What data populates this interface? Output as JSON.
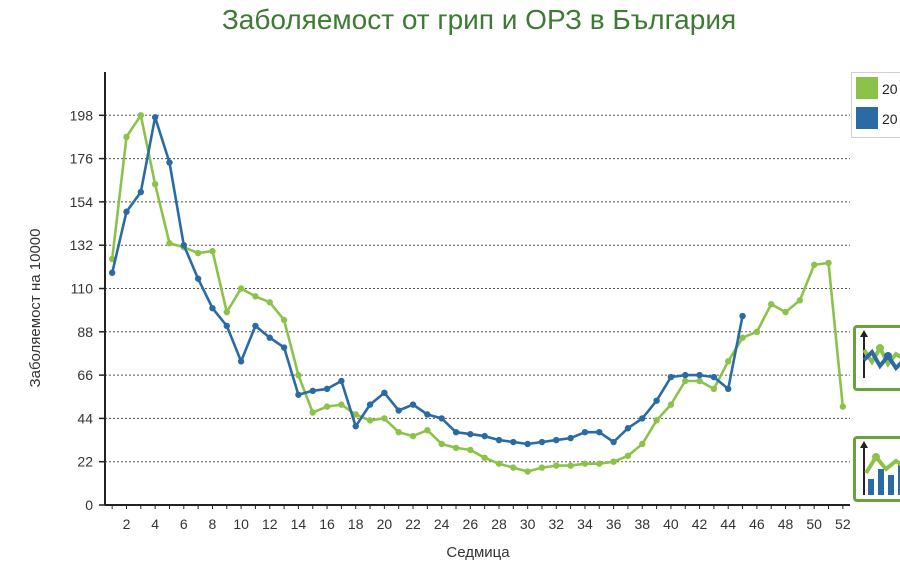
{
  "chart_data": {
    "type": "line",
    "title": "Заболяемост от грип и ОРЗ в България",
    "xlabel": "Седмица",
    "ylabel": "Заболяемост на 10000",
    "ylim": [
      0,
      220
    ],
    "xlim": [
      0.5,
      52.5
    ],
    "yticks": [
      0,
      22,
      44,
      66,
      88,
      110,
      132,
      154,
      176,
      198
    ],
    "xticks": [
      2,
      4,
      6,
      8,
      10,
      12,
      14,
      16,
      18,
      20,
      22,
      24,
      26,
      28,
      30,
      32,
      34,
      36,
      38,
      40,
      42,
      44,
      46,
      48,
      50,
      52
    ],
    "grid": true,
    "legend_position": "right",
    "series": [
      {
        "name": "20",
        "color": "#8bc34a",
        "x": [
          1,
          2,
          3,
          4,
          5,
          6,
          7,
          8,
          9,
          10,
          11,
          12,
          13,
          14,
          15,
          16,
          17,
          18,
          19,
          20,
          21,
          22,
          23,
          24,
          25,
          26,
          27,
          28,
          29,
          30,
          31,
          32,
          33,
          34,
          35,
          36,
          37,
          38,
          39,
          40,
          41,
          42,
          43,
          44,
          45,
          46,
          47,
          48,
          49,
          50,
          51,
          52
        ],
        "values": [
          125,
          187,
          198,
          163,
          133,
          131,
          128,
          129,
          98,
          110,
          106,
          103,
          94,
          66,
          47,
          50,
          51,
          46,
          43,
          44,
          37,
          35,
          38,
          31,
          29,
          28,
          24,
          21,
          19,
          17,
          19,
          20,
          20,
          21,
          21,
          22,
          25,
          31,
          43,
          51,
          63,
          63,
          59,
          73,
          85,
          88,
          102,
          98,
          104,
          122,
          123,
          50
        ]
      },
      {
        "name": "20",
        "color": "#2a6ba3",
        "x": [
          1,
          2,
          3,
          4,
          5,
          6,
          7,
          8,
          9,
          10,
          11,
          12,
          13,
          14,
          15,
          16,
          17,
          18,
          19,
          20,
          21,
          22,
          23,
          24,
          25,
          26,
          27,
          28,
          29,
          30,
          31,
          32,
          33,
          34,
          35,
          36,
          37,
          38,
          39,
          40,
          41,
          42,
          43,
          44,
          45
        ],
        "values": [
          118,
          149,
          159,
          197,
          174,
          132,
          115,
          100,
          91,
          73,
          91,
          85,
          80,
          56,
          58,
          59,
          63,
          40,
          51,
          57,
          48,
          51,
          46,
          44,
          37,
          36,
          35,
          33,
          32,
          31,
          32,
          33,
          34,
          37,
          37,
          32,
          39,
          44,
          53,
          65,
          66,
          66,
          65,
          59,
          96
        ]
      }
    ]
  },
  "ui": {
    "buttons": [
      {
        "icon": "line-chart-icon"
      },
      {
        "icon": "bar-line-chart-icon"
      }
    ]
  }
}
